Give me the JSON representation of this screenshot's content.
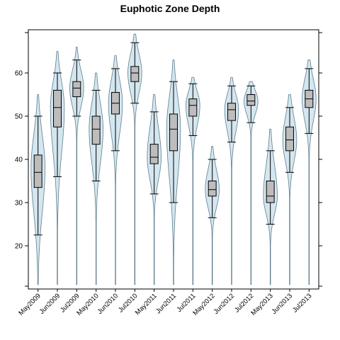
{
  "chart_data": {
    "type": "violin-box",
    "title": "Euphotic Zone Depth",
    "xlabel": "",
    "ylabel": "",
    "ylim": [
      10,
      70
    ],
    "yticks": [
      20,
      30,
      40,
      50,
      60
    ],
    "ticks_on_right": true,
    "grid": false,
    "legend": "none",
    "categories": [
      "May2009",
      "Jun2009",
      "Jul2009",
      "May2010",
      "Jun2010",
      "Jul2010",
      "May2011",
      "Jun2011",
      "Jul2011",
      "May2012",
      "Jun2012",
      "Jul2012",
      "May2013",
      "Jun2013",
      "Jul2013"
    ],
    "series": [
      {
        "category": "May2009",
        "violin_min": 11,
        "violin_max": 55,
        "whisker_low": 22.5,
        "q1": 33.5,
        "median": 37,
        "q3": 41,
        "whisker_high": 50,
        "density_peak": 38
      },
      {
        "category": "Jun2009",
        "violin_min": 11,
        "violin_max": 65,
        "whisker_low": 36,
        "q1": 47.5,
        "median": 52,
        "q3": 56,
        "whisker_high": 60,
        "density_peak": 52
      },
      {
        "category": "Jul2009",
        "violin_min": 11,
        "violin_max": 66,
        "whisker_low": 50,
        "q1": 54.5,
        "median": 56.5,
        "q3": 58,
        "whisker_high": 63,
        "density_peak": 56.5
      },
      {
        "category": "May2010",
        "violin_min": 11,
        "violin_max": 60,
        "whisker_low": 35,
        "q1": 43.5,
        "median": 47,
        "q3": 50,
        "whisker_high": 56,
        "density_peak": 47
      },
      {
        "category": "Jun2010",
        "violin_min": 11,
        "violin_max": 64,
        "whisker_low": 42,
        "q1": 50.5,
        "median": 53,
        "q3": 55.5,
        "whisker_high": 61,
        "density_peak": 53
      },
      {
        "category": "Jul2010",
        "violin_min": 11,
        "violin_max": 69,
        "whisker_low": 53,
        "q1": 58,
        "median": 60,
        "q3": 61.5,
        "whisker_high": 67,
        "density_peak": 60
      },
      {
        "category": "May2011",
        "violin_min": 11,
        "violin_max": 55,
        "whisker_low": 32,
        "q1": 39,
        "median": 40.5,
        "q3": 43.5,
        "whisker_high": 51,
        "density_peak": 40.5
      },
      {
        "category": "Jun2011",
        "violin_min": 11,
        "violin_max": 63,
        "whisker_low": 30,
        "q1": 42,
        "median": 47,
        "q3": 50.5,
        "whisker_high": 58,
        "density_peak": 47
      },
      {
        "category": "Jul2011",
        "violin_min": 11,
        "violin_max": 59,
        "whisker_low": 45.5,
        "q1": 50,
        "median": 52.5,
        "q3": 54,
        "whisker_high": 57.5,
        "density_peak": 52.5
      },
      {
        "category": "May2012",
        "violin_min": 11,
        "violin_max": 43,
        "whisker_low": 26.5,
        "q1": 31.5,
        "median": 33,
        "q3": 35,
        "whisker_high": 40,
        "density_peak": 33
      },
      {
        "category": "Jun2012",
        "violin_min": 11,
        "violin_max": 59,
        "whisker_low": 44,
        "q1": 49,
        "median": 51.5,
        "q3": 53,
        "whisker_high": 57,
        "density_peak": 51.5
      },
      {
        "category": "Jul2012",
        "violin_min": 11,
        "violin_max": 58,
        "whisker_low": 48.5,
        "q1": 52.5,
        "median": 53.5,
        "q3": 55,
        "whisker_high": 57,
        "density_peak": 53.5
      },
      {
        "category": "May2013",
        "violin_min": 11,
        "violin_max": 47,
        "whisker_low": 25,
        "q1": 30,
        "median": 31.5,
        "q3": 35,
        "whisker_high": 42,
        "density_peak": 31.5
      },
      {
        "category": "Jun2013",
        "violin_min": 11,
        "violin_max": 55,
        "whisker_low": 37,
        "q1": 42,
        "median": 44.5,
        "q3": 47.5,
        "whisker_high": 52,
        "density_peak": 44.5
      },
      {
        "category": "Jul2013",
        "violin_min": 11,
        "violin_max": 63,
        "whisker_low": 46,
        "q1": 52,
        "median": 54,
        "q3": 56,
        "whisker_high": 61,
        "density_peak": 54
      }
    ],
    "colors": {
      "violin_fill": "#d4e6ef",
      "violin_stroke": "#5f7f8f",
      "box_fill": "#bdbdbd",
      "line": "#000000"
    }
  }
}
